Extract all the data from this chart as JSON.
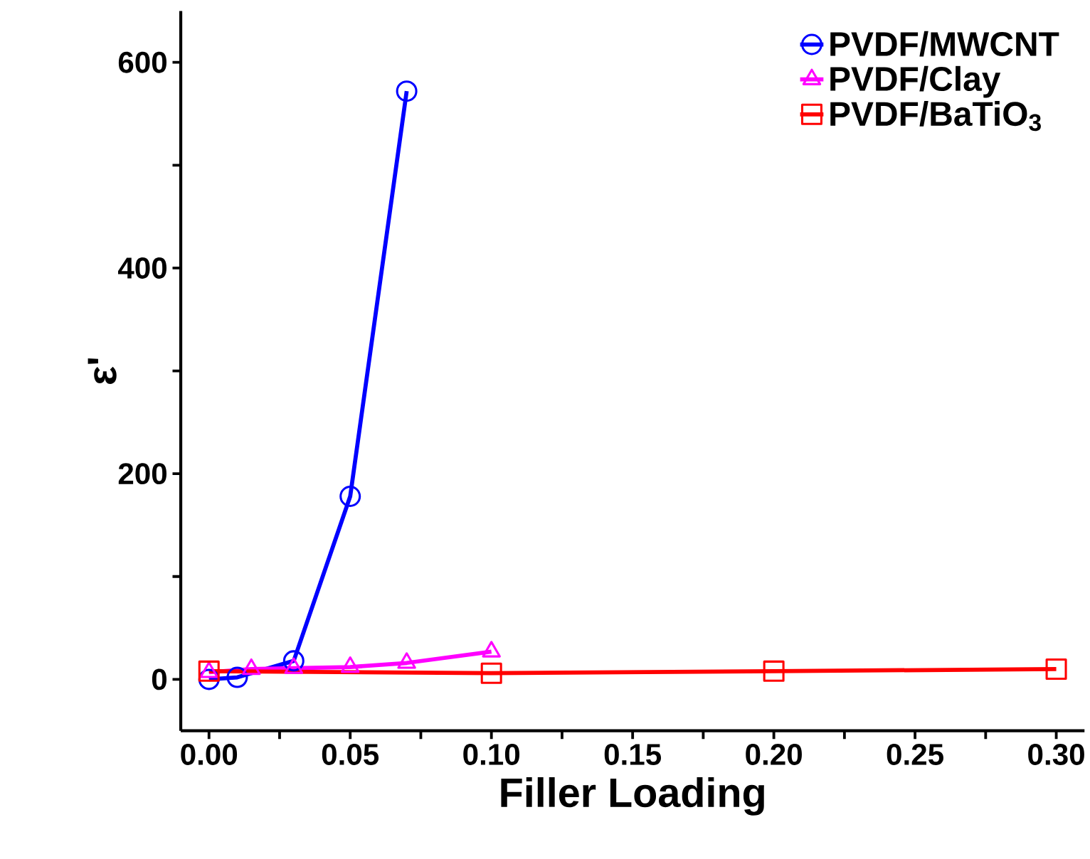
{
  "chart_data": {
    "type": "line",
    "xlabel": "Filler Loading",
    "ylabel": "ε'",
    "series": [
      {
        "name": "PVDF/MWCNT",
        "color": "#0000ff",
        "marker": "circle",
        "x": [
          0,
          0.01,
          0.03,
          0.05,
          0.07
        ],
        "values": [
          0,
          2,
          18,
          178,
          572
        ]
      },
      {
        "name": "PVDF/Clay",
        "color": "#ff00ff",
        "marker": "triangle",
        "x": [
          0,
          0.015,
          0.03,
          0.05,
          0.07,
          0.1
        ],
        "values": [
          7,
          10,
          11,
          12,
          16,
          27
        ]
      },
      {
        "name": "PVDF/BaTiO$_{3}$",
        "color": "#ff0000",
        "marker": "square",
        "x": [
          0,
          0.1,
          0.2,
          0.3
        ],
        "values": [
          8,
          6,
          8,
          10
        ]
      }
    ],
    "xlim": [
      -0.01,
      0.31
    ],
    "ylim": [
      -50,
      650
    ],
    "xticks": [
      {
        "value": 0,
        "label": "0.00"
      },
      {
        "value": 0.025,
        "label": null
      },
      {
        "value": 0.05,
        "label": "0.05"
      },
      {
        "value": 0.075,
        "label": null
      },
      {
        "value": 0.1,
        "label": "0.10"
      },
      {
        "value": 0.125,
        "label": null
      },
      {
        "value": 0.15,
        "label": "0.15"
      },
      {
        "value": 0.175,
        "label": null
      },
      {
        "value": 0.2,
        "label": "0.20"
      },
      {
        "value": 0.225,
        "label": null
      },
      {
        "value": 0.25,
        "label": "0.25"
      },
      {
        "value": 0.275,
        "label": null
      },
      {
        "value": 0.3,
        "label": "0.30"
      }
    ],
    "yticks": [
      0,
      {
        "value": 100,
        "label": null
      },
      200,
      {
        "value": 300,
        "label": null
      },
      400,
      {
        "value": 500,
        "label": null
      },
      600
    ],
    "legend": "top right",
    "grid": false,
    "line_style": "solid"
  }
}
